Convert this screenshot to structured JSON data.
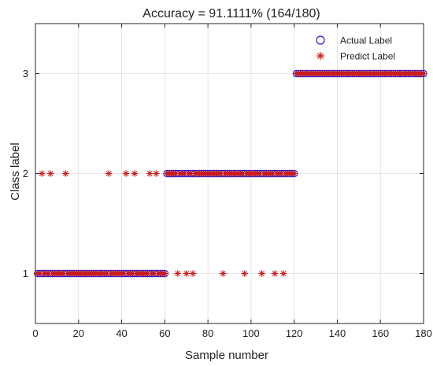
{
  "chart_data": {
    "type": "scatter",
    "title": "Accuracy = 91.1111% (164/180)",
    "xlabel": "Sample number",
    "ylabel": "Class label",
    "xlim": [
      0,
      180
    ],
    "ylim": [
      0.5,
      3.5
    ],
    "xticks": [
      "0",
      "20",
      "40",
      "60",
      "80",
      "100",
      "120",
      "140",
      "160",
      "180"
    ],
    "yticks": [
      "1",
      "2",
      "3"
    ],
    "grid": true,
    "legend_position": "top-right",
    "legend": [
      {
        "label": "Actual Label",
        "marker": "circle",
        "color": "#1a1ae6"
      },
      {
        "label": "Predict Label",
        "marker": "asterisk",
        "color": "#cc1a1a"
      }
    ],
    "series": [
      {
        "name": "Actual Label",
        "marker": "circle",
        "color": "#1a1ae6",
        "segments": [
          {
            "x_start": 1,
            "x_end": 60,
            "y": 1
          },
          {
            "x_start": 61,
            "x_end": 120,
            "y": 2
          },
          {
            "x_start": 121,
            "x_end": 180,
            "y": 3
          }
        ]
      },
      {
        "name": "Predict Label",
        "marker": "asterisk",
        "color": "#cc1a1a",
        "segments": [
          {
            "x_start": 1,
            "x_end": 60,
            "y": 1
          },
          {
            "x_start": 61,
            "x_end": 120,
            "y": 2
          },
          {
            "x_start": 121,
            "x_end": 180,
            "y": 3
          }
        ],
        "misclassified": [
          {
            "x": 3,
            "y": 2
          },
          {
            "x": 7,
            "y": 2
          },
          {
            "x": 14,
            "y": 2
          },
          {
            "x": 34,
            "y": 2
          },
          {
            "x": 42,
            "y": 2
          },
          {
            "x": 46,
            "y": 2
          },
          {
            "x": 53,
            "y": 2
          },
          {
            "x": 56,
            "y": 2
          },
          {
            "x": 66,
            "y": 1
          },
          {
            "x": 70,
            "y": 1
          },
          {
            "x": 73,
            "y": 1
          },
          {
            "x": 87,
            "y": 1
          },
          {
            "x": 97,
            "y": 1
          },
          {
            "x": 105,
            "y": 1
          },
          {
            "x": 111,
            "y": 1
          },
          {
            "x": 115,
            "y": 1
          }
        ]
      }
    ]
  }
}
